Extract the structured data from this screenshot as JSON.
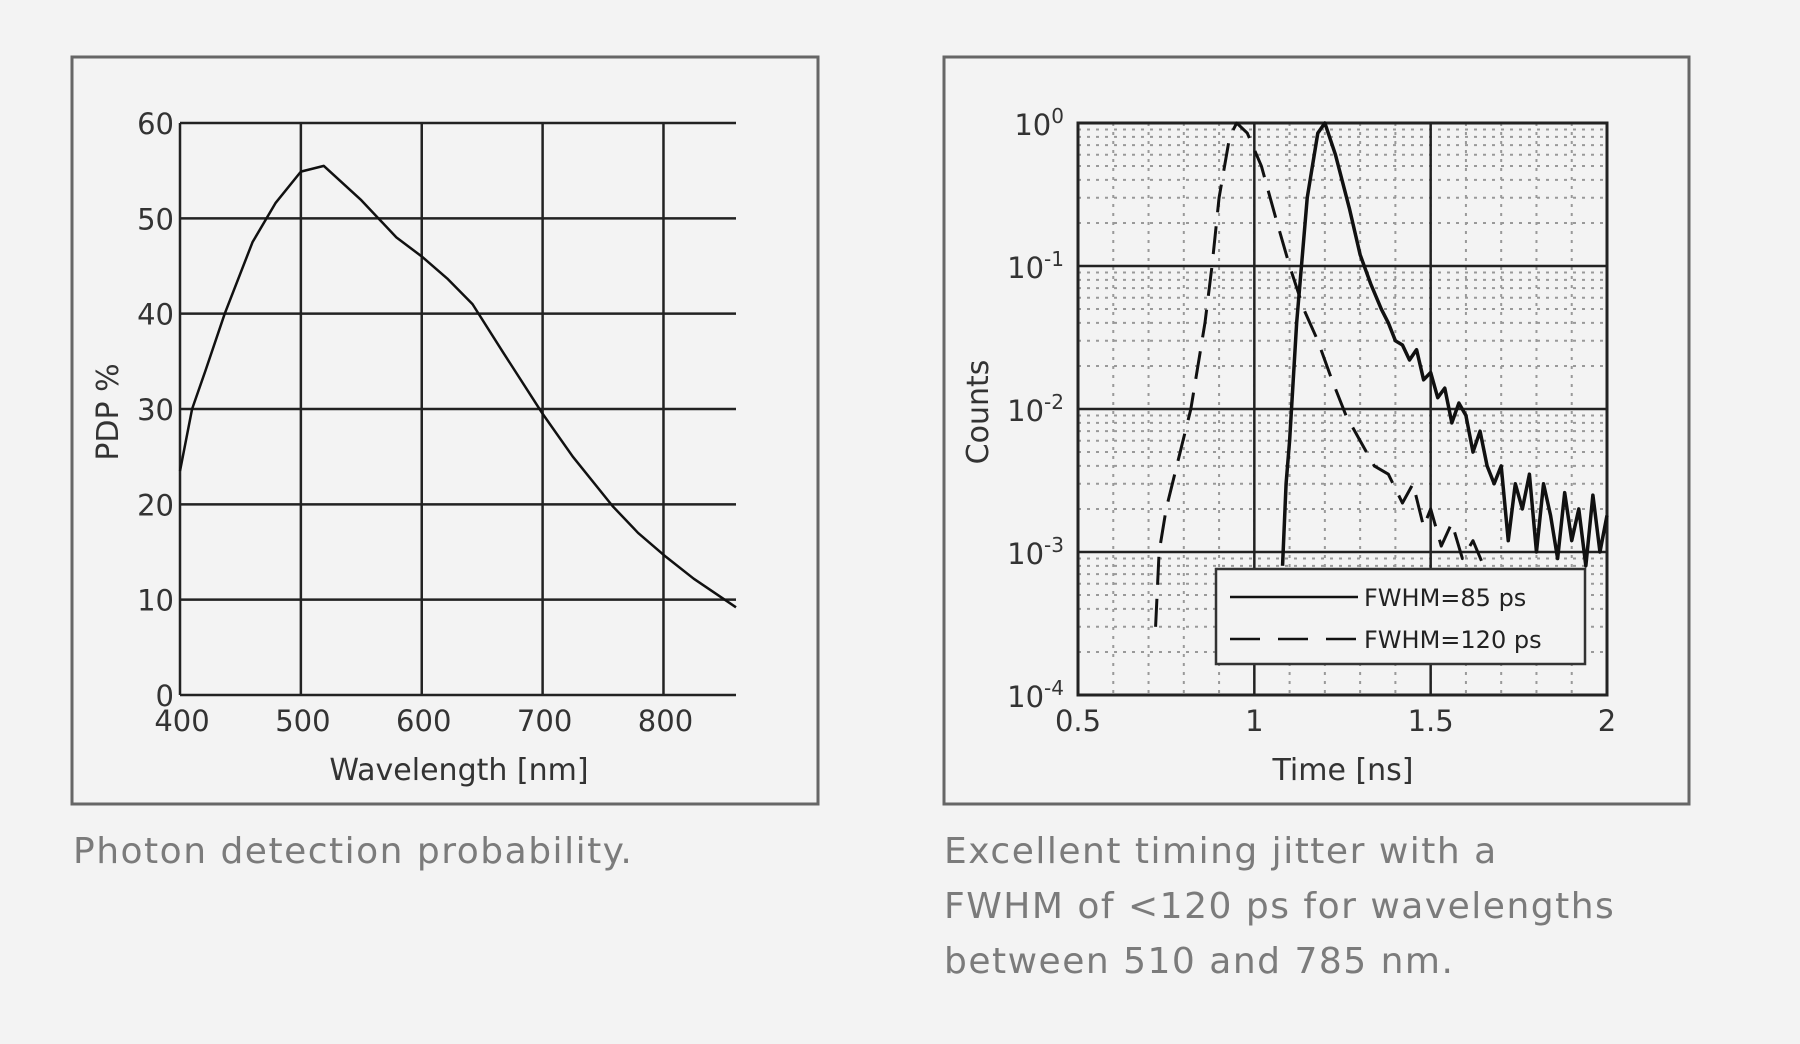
{
  "background": "#f3f3f3",
  "captions": {
    "left": "Photon detection probability.",
    "right_lines": [
      "Excellent timing jitter with a",
      "FWHM of <120 ps for wavelengths",
      "between 510 and 785 nm."
    ]
  },
  "chart_data": [
    {
      "type": "line",
      "title": "",
      "xlabel": "Wavelength [nm]",
      "ylabel": "PDP %",
      "xlim": [
        400,
        860
      ],
      "ylim": [
        0,
        60
      ],
      "x_ticks": [
        400,
        500,
        600,
        700,
        800
      ],
      "y_ticks": [
        0,
        10,
        20,
        30,
        40,
        50,
        60
      ],
      "grid": true,
      "series": [
        {
          "x": [
            400,
            410,
            421,
            437,
            460,
            479,
            500,
            519,
            550,
            579,
            600,
            621,
            642,
            667,
            700,
            725,
            758,
            779,
            802,
            825,
            860
          ],
          "y": [
            23.5,
            30,
            34,
            40,
            47.5,
            51.6,
            54.9,
            55.5,
            51.9,
            48,
            46,
            43.7,
            41,
            36,
            29.5,
            25,
            19.8,
            17,
            14.5,
            12.2,
            9.2
          ]
        }
      ]
    },
    {
      "type": "line",
      "title": "",
      "xlabel": "Time [ns]",
      "ylabel": "Counts",
      "xlim": [
        0.5,
        2
      ],
      "ylim": [
        0.0001,
        1
      ],
      "y_scale": "log",
      "x_ticks": [
        0.5,
        1,
        1.5,
        2
      ],
      "x_tick_labels": [
        "0.5",
        "1",
        "1.5",
        "2"
      ],
      "y_tick_exponents": [
        0,
        -1,
        -2,
        -3,
        -4
      ],
      "grid": true,
      "minor_grid": "dotted",
      "legend": "bottom-right",
      "series": [
        {
          "name": "FWHM=85 ps",
          "style": "solid",
          "x": [
            1.08,
            1.09,
            1.1,
            1.12,
            1.15,
            1.18,
            1.2,
            1.23,
            1.27,
            1.3,
            1.33,
            1.36,
            1.38,
            1.4,
            1.42,
            1.44,
            1.46,
            1.48,
            1.5,
            1.52,
            1.54,
            1.56,
            1.58,
            1.6,
            1.62,
            1.64,
            1.66,
            1.68,
            1.7,
            1.72,
            1.74,
            1.76,
            1.78,
            1.8,
            1.82,
            1.84,
            1.86,
            1.88,
            1.9,
            1.92,
            1.94,
            1.96,
            1.98,
            2.0
          ],
          "y": [
            0.0008,
            0.003,
            0.006,
            0.04,
            0.3,
            0.85,
            1.0,
            0.6,
            0.25,
            0.12,
            0.075,
            0.05,
            0.04,
            0.03,
            0.028,
            0.022,
            0.026,
            0.016,
            0.018,
            0.012,
            0.014,
            0.008,
            0.011,
            0.009,
            0.005,
            0.007,
            0.004,
            0.003,
            0.004,
            0.0012,
            0.003,
            0.002,
            0.0035,
            0.001,
            0.003,
            0.0018,
            0.0009,
            0.0026,
            0.0012,
            0.002,
            0.0008,
            0.0025,
            0.001,
            0.0018
          ]
        },
        {
          "name": "FWHM=120 ps",
          "style": "dashed",
          "x": [
            0.72,
            0.73,
            0.75,
            0.78,
            0.82,
            0.86,
            0.88,
            0.9,
            0.93,
            0.95,
            0.98,
            1.02,
            1.06,
            1.1,
            1.14,
            1.18,
            1.22,
            1.26,
            1.3,
            1.34,
            1.38,
            1.42,
            1.45,
            1.48,
            1.5,
            1.53,
            1.56,
            1.59,
            1.62,
            1.65
          ],
          "y": [
            0.0003,
            0.001,
            0.002,
            0.004,
            0.01,
            0.04,
            0.1,
            0.3,
            0.8,
            1.0,
            0.85,
            0.5,
            0.22,
            0.1,
            0.05,
            0.03,
            0.016,
            0.009,
            0.006,
            0.004,
            0.0035,
            0.0022,
            0.003,
            0.0015,
            0.002,
            0.0011,
            0.0016,
            0.0009,
            0.0012,
            0.0008
          ]
        }
      ]
    }
  ]
}
